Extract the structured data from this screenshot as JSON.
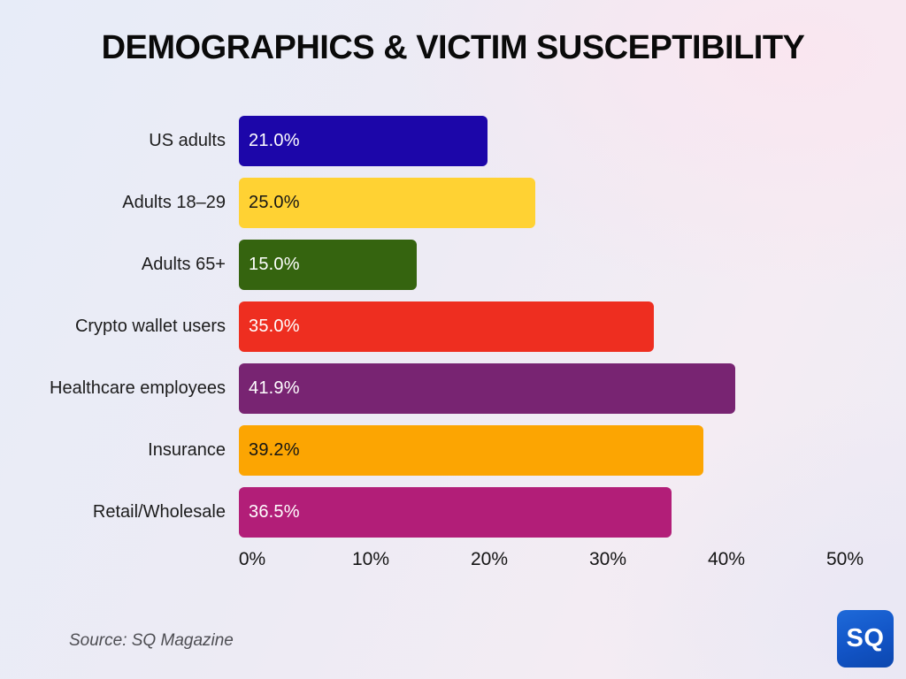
{
  "title": "DEMOGRAPHICS & VICTIM SUSCEPTIBILITY",
  "source": "Source: SQ Magazine",
  "logo": {
    "text": "SQ",
    "background": "#1254C6",
    "foreground": "#FFFFFF"
  },
  "chart_data": {
    "type": "bar",
    "orientation": "horizontal",
    "title": "DEMOGRAPHICS & VICTIM SUSCEPTIBILITY",
    "xlabel": "",
    "ylabel": "",
    "xlim": [
      0,
      50
    ],
    "grid": false,
    "legend": false,
    "categories": [
      "US adults",
      "Adults 18–29",
      "Adults 65+",
      "Crypto wallet users",
      "Healthcare employees",
      "Insurance",
      "Retail/Wholesale"
    ],
    "values": [
      21.0,
      25.0,
      15.0,
      35.0,
      41.9,
      39.2,
      36.5
    ],
    "value_labels": [
      "21.0%",
      "25.0%",
      "15.0%",
      "35.0%",
      "41.9%",
      "39.2%",
      "36.5%"
    ],
    "bar_colors": [
      "#1C06A9",
      "#FFD233",
      "#35640F",
      "#EE2E20",
      "#782472",
      "#FCA502",
      "#B21E78"
    ],
    "value_text_colors": [
      "#FFFFFF",
      "#151515",
      "#FFFFFF",
      "#FFFFFF",
      "#FFFFFF",
      "#151515",
      "#FFFFFF"
    ],
    "x_ticks": [
      {
        "value": 0,
        "label": "0%"
      },
      {
        "value": 10,
        "label": "10%"
      },
      {
        "value": 20,
        "label": "20%"
      },
      {
        "value": 30,
        "label": "30%"
      },
      {
        "value": 40,
        "label": "40%"
      },
      {
        "value": 50,
        "label": "50%"
      }
    ]
  }
}
